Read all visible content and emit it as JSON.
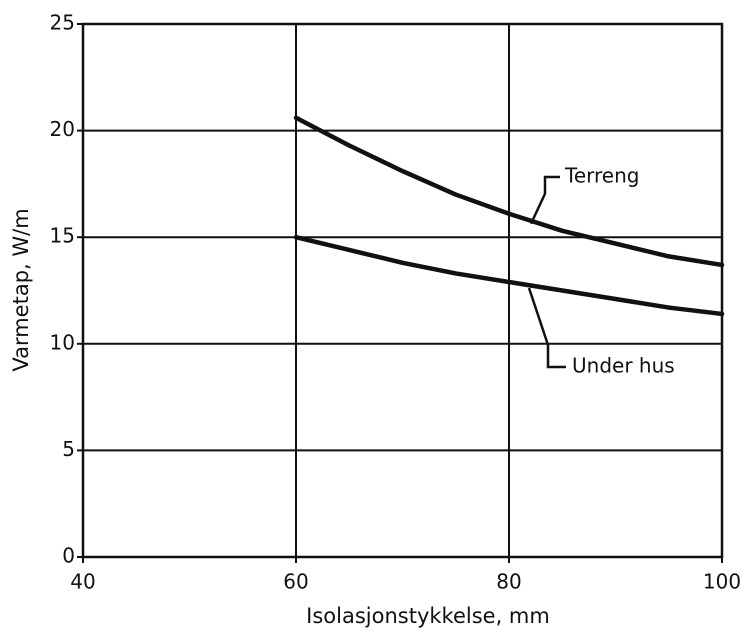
{
  "chart_data": {
    "type": "line",
    "xlabel": "Isolasjonstykkelse, mm",
    "ylabel": "Varmetap, W/m",
    "x": [
      60,
      65,
      70,
      75,
      80,
      85,
      90,
      95,
      100
    ],
    "series": [
      {
        "name": "Terreng",
        "color": "#111111",
        "values": [
          20.6,
          19.3,
          18.1,
          17.0,
          16.1,
          15.3,
          14.7,
          14.1,
          13.7
        ]
      },
      {
        "name": "Under hus",
        "color": "#111111",
        "values": [
          15.0,
          14.4,
          13.8,
          13.3,
          12.9,
          12.5,
          12.1,
          11.7,
          11.4
        ]
      }
    ],
    "xlim": [
      40,
      100
    ],
    "xticks": [
      40,
      60,
      80,
      100
    ],
    "ylim": [
      0,
      25
    ],
    "yticks": [
      0,
      5,
      10,
      15,
      20,
      25
    ],
    "grid": true
  }
}
